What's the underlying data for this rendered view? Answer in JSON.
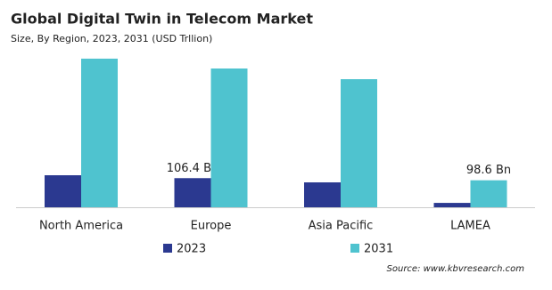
{
  "chart_data": {
    "type": "bar",
    "title": "Global Digital Twin in Telecom Market",
    "subtitle": "Size, By Region, 2023, 2031 (USD Trllion)",
    "categories": [
      "North America",
      "Europe",
      "Asia Pacific",
      "LAMEA"
    ],
    "series": [
      {
        "name": "2023",
        "color": "#2b3990",
        "values": [
          117,
          106.4,
          91,
          16
        ],
        "value_labels": [
          null,
          "106.4 Bn",
          null,
          null
        ]
      },
      {
        "name": "2031",
        "color": "#4fc3cf",
        "values": [
          543,
          507,
          468,
          98.6
        ],
        "value_labels": [
          null,
          null,
          null,
          "98.6 Bn"
        ]
      }
    ],
    "legend": "bottom",
    "source": "Source: www.kbvresearch.com"
  }
}
